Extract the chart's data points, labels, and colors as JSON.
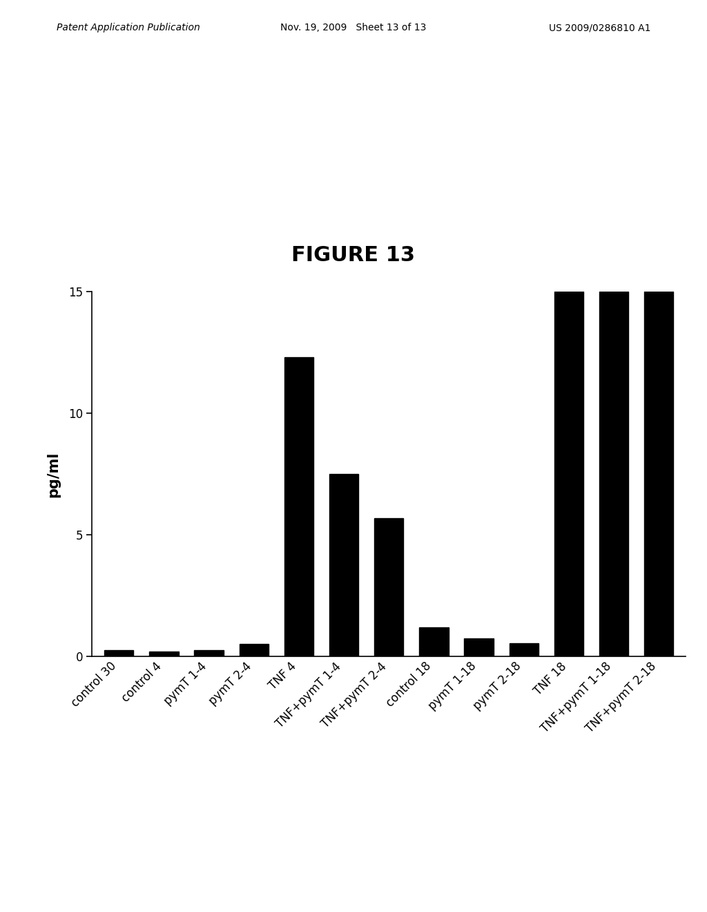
{
  "title": "FIGURE 13",
  "ylabel": "pg/ml",
  "header_left": "Patent Application Publication",
  "header_mid": "Nov. 19, 2009   Sheet 13 of 13",
  "header_right": "US 2009/0286810 A1",
  "categories": [
    "control 30",
    "control 4",
    "pymT 1-4",
    "pymT 2-4",
    "TNF 4",
    "TNF+pymT 1-4",
    "TNF+pymT 2-4",
    "control 18",
    "pymT 1-18",
    "pymT 2-18",
    "TNF 18",
    "TNF+pymT 1-18",
    "TNF+pymT 2-18"
  ],
  "values": [
    0.28,
    0.22,
    0.28,
    0.52,
    12.3,
    7.5,
    5.7,
    1.2,
    0.75,
    0.55,
    15.0,
    15.0,
    15.0
  ],
  "bar_color": "#000000",
  "ylim": [
    0,
    15
  ],
  "yticks": [
    0,
    5,
    10,
    15
  ],
  "background_color": "#ffffff",
  "title_fontsize": 22,
  "ylabel_fontsize": 15,
  "tick_fontsize": 12,
  "header_fontsize": 10,
  "bar_width": 0.65
}
